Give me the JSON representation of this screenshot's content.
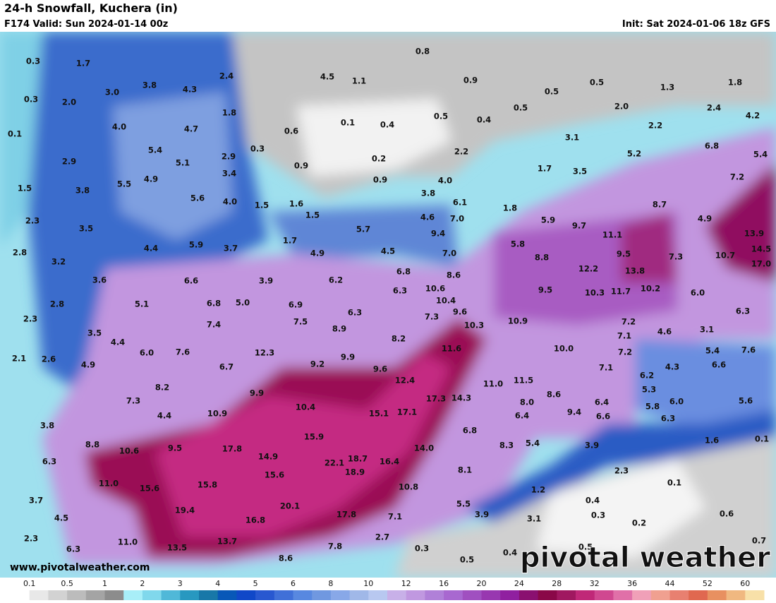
{
  "header": {
    "title": "24-h Snowfall, Kuchera (in)",
    "subtitle": "F174 Valid: Sun 2024-01-14 00z",
    "init": "Init: Sat 2024-01-06 18z GFS"
  },
  "map": {
    "labels": [
      "0.3",
      "1.7",
      "3.8",
      "4.3",
      "2.4",
      "4.5",
      "1.1",
      "0.8",
      "0.9",
      "0.5",
      "0.5",
      "1.3",
      "1.8",
      "0.3",
      "2.0",
      "3.0",
      "1.8",
      "0.6",
      "0.1",
      "0.4",
      "0.5",
      "0.5",
      "0.4",
      "2.0",
      "2.4",
      "4.2",
      "0.1",
      "4.0",
      "4.7",
      "0.3",
      "0.2",
      "2.2",
      "3.1",
      "5.2",
      "2.2",
      "6.8",
      "5.4",
      "2.9",
      "5.4",
      "5.1",
      "2.9",
      "0.9",
      "0.9",
      "4.0",
      "1.7",
      "3.5",
      "7.2",
      "1.5",
      "3.8",
      "5.5",
      "4.9",
      "3.4",
      "5.6",
      "4.0",
      "1.5",
      "1.6",
      "1.5",
      "3.8",
      "6.1",
      "1.8",
      "8.7",
      "2.3",
      "3.5",
      "4.6",
      "7.0",
      "5.7",
      "9.4",
      "5.9",
      "9.7",
      "4.9",
      "13.9",
      "2.8",
      "4.4",
      "5.9",
      "3.7",
      "1.7",
      "4.9",
      "4.5",
      "5.8",
      "11.1",
      "9.5",
      "14.5",
      "3.2",
      "3.6",
      "6.6",
      "3.9",
      "6.2",
      "6.8",
      "7.0",
      "8.6",
      "8.8",
      "12.2",
      "13.8",
      "7.3",
      "10.7",
      "17.0",
      "2.8",
      "5.1",
      "6.8",
      "5.0",
      "6.9",
      "6.3",
      "10.6",
      "10.4",
      "9.5",
      "10.3",
      "11.7",
      "10.2",
      "6.0",
      "6.3",
      "2.3",
      "7.4",
      "7.5",
      "6.3",
      "9.6",
      "7.3",
      "10.3",
      "10.9",
      "7.2",
      "7.1",
      "4.6",
      "3.1",
      "3.5",
      "4.4",
      "8.9",
      "8.2",
      "11.6",
      "10.0",
      "7.2",
      "5.4",
      "7.6",
      "2.1",
      "2.6",
      "4.9",
      "6.0",
      "7.6",
      "6.7",
      "12.3",
      "9.2",
      "9.9",
      "9.6",
      "12.4",
      "7.1",
      "6.2",
      "4.3",
      "6.6",
      "8.2",
      "9.9",
      "11.0",
      "11.5",
      "8.6",
      "5.3",
      "6.4",
      "6.0",
      "5.6",
      "7.3",
      "4.4",
      "10.9",
      "10.4",
      "15.1",
      "17.1",
      "17.3",
      "14.3",
      "8.0",
      "6.4",
      "9.4",
      "6.6",
      "5.8",
      "6.3",
      "3.8",
      "8.8",
      "10.6",
      "9.5",
      "17.8",
      "15.9",
      "14.0",
      "6.8",
      "8.3",
      "5.4",
      "3.9",
      "1.6",
      "0.1",
      "6.3",
      "14.9",
      "22.1",
      "18.7",
      "16.4",
      "18.9",
      "15.6",
      "8.1",
      "2.3",
      "11.0",
      "15.6",
      "15.8",
      "10.8",
      "1.2",
      "0.1",
      "3.7",
      "19.4",
      "20.1",
      "5.5",
      "0.4",
      "4.5",
      "16.8",
      "17.8",
      "7.1",
      "3.9",
      "3.1",
      "0.3",
      "0.2",
      "0.6",
      "2.3",
      "11.0",
      "13.7",
      "2.7",
      "6.3",
      "13.5",
      "7.8",
      "0.3",
      "0.4",
      "0.5",
      "0.7",
      "8.6",
      "0.5"
    ]
  },
  "watermark": "www.pivotalweather.com",
  "logo": "pivotal weather",
  "colorbar": {
    "labels": [
      "0.1",
      "0.5",
      "1",
      "2",
      "3",
      "4",
      "5",
      "6",
      "8",
      "10",
      "12",
      "16",
      "20",
      "24",
      "28",
      "32",
      "36",
      "44",
      "52",
      "60"
    ]
  }
}
